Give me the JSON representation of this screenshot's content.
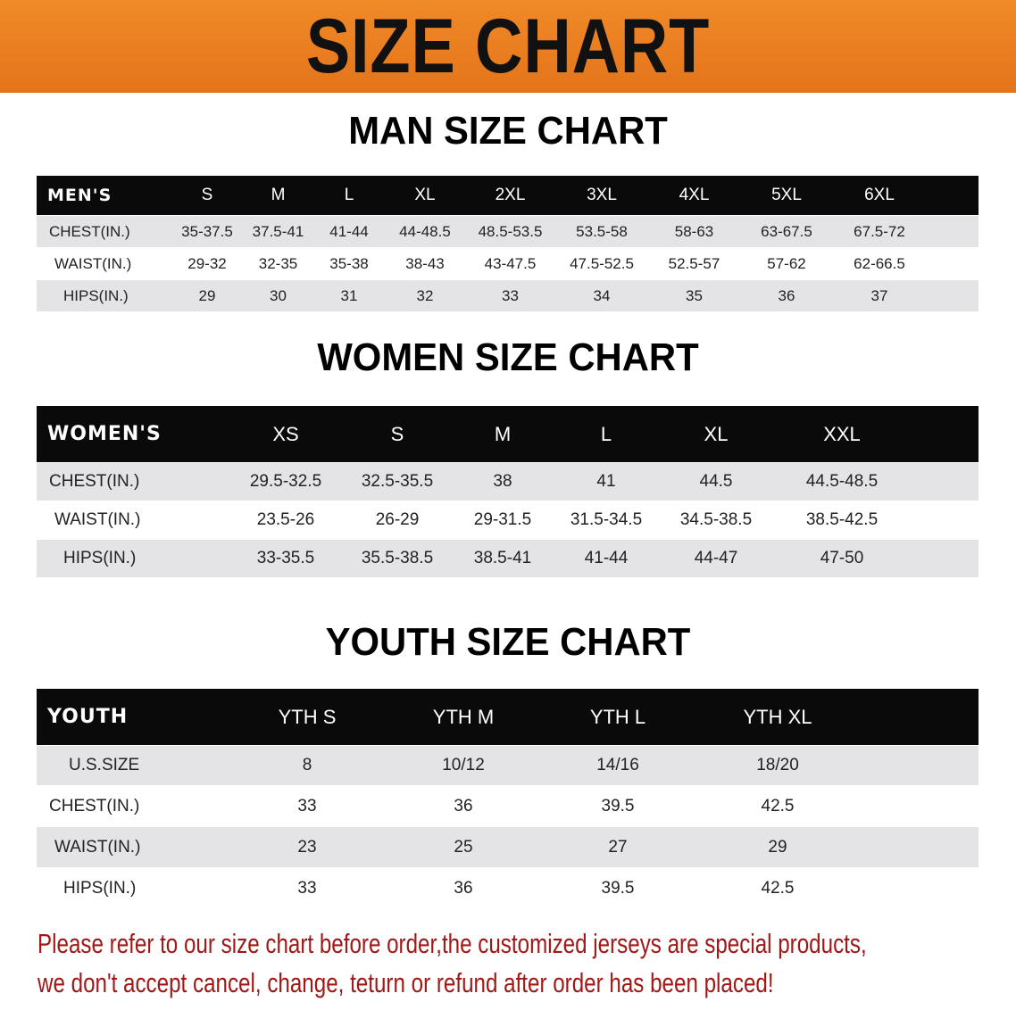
{
  "banner": {
    "title": "SIZE CHART",
    "color": "#e8781a"
  },
  "men": {
    "title": "MAN SIZE CHART",
    "header": [
      "MEN'S",
      "S",
      "M",
      "L",
      "XL",
      "2XL",
      "3XL",
      "4XL",
      "5XL",
      "6XL"
    ],
    "rows": [
      [
        "CHEST(IN.)",
        "35-37.5",
        "37.5-41",
        "41-44",
        "44-48.5",
        "48.5-53.5",
        "53.5-58",
        "58-63",
        "63-67.5",
        "67.5-72"
      ],
      [
        "WAIST(IN.)",
        "29-32",
        "32-35",
        "35-38",
        "38-43",
        "43-47.5",
        "47.5-52.5",
        "52.5-57",
        "57-62",
        "62-66.5"
      ],
      [
        "HIPS(IN.)",
        "29",
        "30",
        "31",
        "32",
        "33",
        "34",
        "35",
        "36",
        "37"
      ]
    ]
  },
  "women": {
    "title": "WOMEN SIZE CHART",
    "header": [
      "WOMEN'S",
      "XS",
      "S",
      "M",
      "L",
      "XL",
      "XXL"
    ],
    "rows": [
      [
        "CHEST(IN.)",
        "29.5-32.5",
        "32.5-35.5",
        "38",
        "41",
        "44.5",
        "44.5-48.5"
      ],
      [
        "WAIST(IN.)",
        "23.5-26",
        "26-29",
        "29-31.5",
        "31.5-34.5",
        "34.5-38.5",
        "38.5-42.5"
      ],
      [
        "HIPS(IN.)",
        "33-35.5",
        "35.5-38.5",
        "38.5-41",
        "41-44",
        "44-47",
        "47-50"
      ]
    ]
  },
  "youth": {
    "title": "YOUTH SIZE CHART",
    "header": [
      "YOUTH",
      "YTH S",
      "YTH M",
      "YTH L",
      "YTH XL"
    ],
    "rows": [
      [
        "U.S.SIZE",
        "8",
        "10/12",
        "14/16",
        "18/20"
      ],
      [
        "CHEST(IN.)",
        "33",
        "36",
        "39.5",
        "42.5"
      ],
      [
        "WAIST(IN.)",
        "23",
        "25",
        "27",
        "29"
      ],
      [
        "HIPS(IN.)",
        "33",
        "36",
        "39.5",
        "42.5"
      ]
    ]
  },
  "note": {
    "line1": "Please refer to our size chart before order,the customized jerseys are special products,",
    "line2": "we don't accept cancel, change, teturn or refund after order has been placed!",
    "color": "#a01818"
  }
}
